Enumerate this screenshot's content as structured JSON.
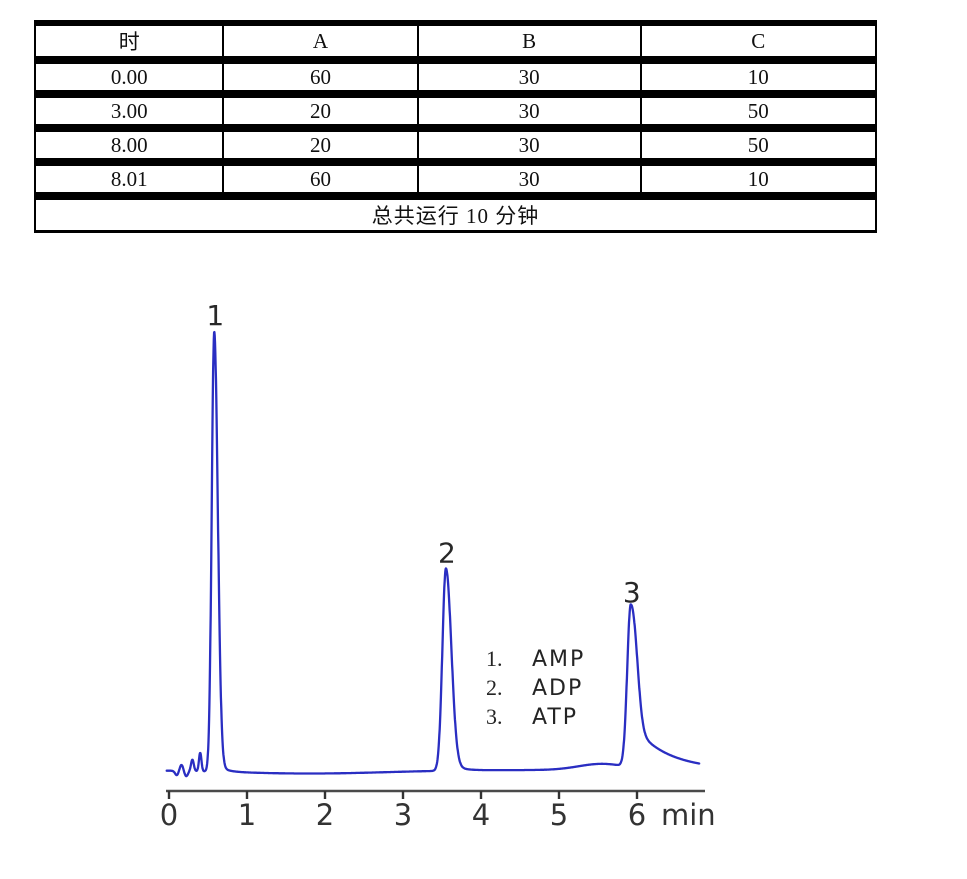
{
  "table": {
    "headers": [
      "时",
      "A",
      "B",
      "C"
    ],
    "rows": [
      [
        "0.00",
        "60",
        "30",
        "10"
      ],
      [
        "3.00",
        "20",
        "30",
        "50"
      ],
      [
        "8.00",
        "20",
        "30",
        "50"
      ],
      [
        "8.01",
        "60",
        "30",
        "10"
      ]
    ],
    "footer": "总共运行  10 分钟"
  },
  "chart_data": {
    "type": "line",
    "title": "",
    "xlabel": "min",
    "x_ticks": [
      "0",
      "1",
      "2",
      "3",
      "4",
      "5",
      "6"
    ],
    "x_range_min": [
      -0.03,
      6.8
    ],
    "grid": false,
    "legend_position": "upper right",
    "trace_color": "#2a2ec2",
    "peaks": [
      {
        "label": "1",
        "compound": "AMP",
        "retention_min": 0.58,
        "rel_height": 1.0,
        "sigma_left_min": 0.032,
        "sigma_right_min": 0.045,
        "tail_amp": 0.025,
        "tail_tau_min": 0.1
      },
      {
        "label": "2",
        "compound": "ADP",
        "retention_min": 3.55,
        "rel_height": 0.46,
        "sigma_left_min": 0.045,
        "sigma_right_min": 0.068,
        "tail_amp": 0.06,
        "tail_tau_min": 0.12
      },
      {
        "label": "3",
        "compound": "ATP",
        "retention_min": 5.92,
        "rel_height": 0.37,
        "sigma_left_min": 0.045,
        "sigma_right_min": 0.07,
        "tail_amp": 0.28,
        "tail_tau_min": 0.45
      }
    ],
    "noise_bumps": [
      {
        "t_min": 0.1,
        "rel_height": -0.01,
        "sigma_min": 0.022
      },
      {
        "t_min": 0.16,
        "rel_height": 0.014,
        "sigma_min": 0.022
      },
      {
        "t_min": 0.22,
        "rel_height": -0.012,
        "sigma_min": 0.022
      },
      {
        "t_min": 0.3,
        "rel_height": 0.026,
        "sigma_min": 0.018
      },
      {
        "t_min": 0.4,
        "rel_height": 0.042,
        "sigma_min": 0.016
      },
      {
        "t_min": 1.8,
        "rel_height": -0.008,
        "sigma_min": 1.0
      },
      {
        "t_min": 5.55,
        "rel_height": 0.014,
        "sigma_min": 0.3
      }
    ],
    "legend": [
      {
        "num": "1.",
        "label": "AMP"
      },
      {
        "num": "2.",
        "label": "ADP"
      },
      {
        "num": "3.",
        "label": "ATP"
      }
    ]
  }
}
